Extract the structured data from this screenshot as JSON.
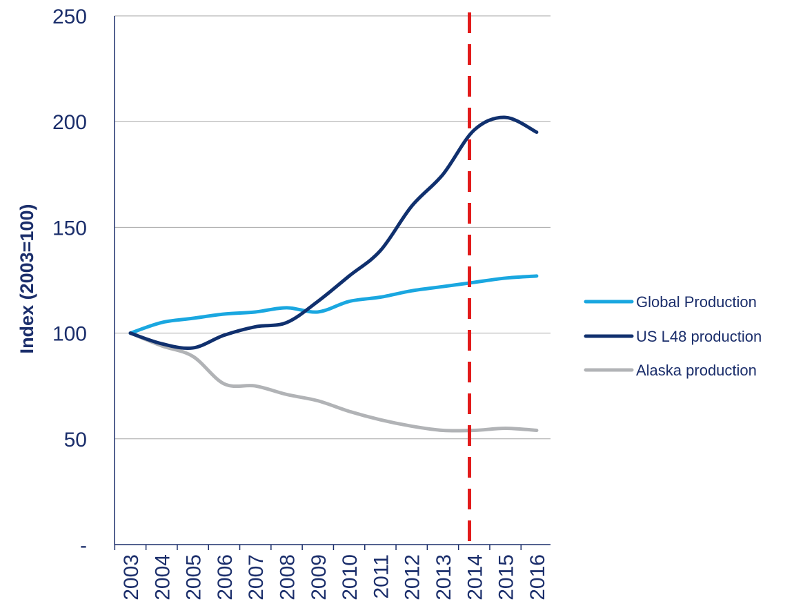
{
  "chart_data": {
    "type": "line",
    "title": "",
    "xlabel": "",
    "ylabel": "Index (2003=100)",
    "x": [
      "2003",
      "2004",
      "2005",
      "2006",
      "2007",
      "2008",
      "2009",
      "2010",
      "2011",
      "2012",
      "2013",
      "2014",
      "2015",
      "2016"
    ],
    "ylim": [
      0,
      250
    ],
    "yticks": [
      0,
      50,
      100,
      150,
      200,
      250
    ],
    "ytick_labels": [
      "-",
      "50",
      "100",
      "150",
      "200",
      "250"
    ],
    "grid": true,
    "legend_position": "right",
    "series": [
      {
        "name": "Global Production",
        "color": "#1aa7e0",
        "values": [
          100,
          105,
          107,
          109,
          110,
          112,
          110,
          115,
          117,
          120,
          122,
          124,
          126,
          127
        ]
      },
      {
        "name": "US L48 production",
        "color": "#10306e",
        "values": [
          100,
          95,
          93,
          99,
          103,
          105,
          115,
          127,
          139,
          160,
          175,
          196,
          202,
          195
        ]
      },
      {
        "name": "Alaska production",
        "color": "#b1b3b6",
        "values": [
          100,
          94,
          89,
          76,
          75,
          71,
          68,
          63,
          59,
          56,
          54,
          54,
          55,
          54
        ]
      }
    ],
    "annotations": [
      {
        "type": "vertical-dashed-line",
        "x": 2013.85,
        "color": "#e21b1b"
      }
    ]
  }
}
